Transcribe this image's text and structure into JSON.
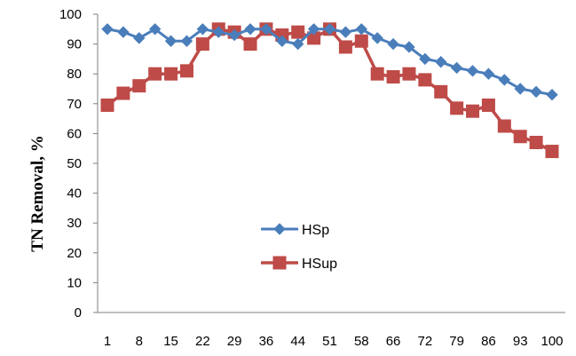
{
  "chart_data": {
    "type": "line",
    "title": "",
    "xlabel": "",
    "ylabel": "TN  Removal, %",
    "ylim": [
      0,
      100
    ],
    "yticks": [
      0,
      10,
      20,
      30,
      40,
      50,
      60,
      70,
      80,
      90,
      100
    ],
    "x_tick_labels": [
      "1",
      "8",
      "15",
      "22",
      "29",
      "36",
      "44",
      "51",
      "58",
      "66",
      "72",
      "79",
      "86",
      "93",
      "100"
    ],
    "grid": false,
    "legend_position": "center-left",
    "series": [
      {
        "name": "HSp",
        "color": "#4a7ebb",
        "marker": "diamond",
        "values": [
          95,
          94,
          92,
          95,
          91,
          91,
          95,
          94,
          93,
          95,
          95,
          91,
          90,
          95,
          95,
          94,
          95,
          92,
          90,
          89,
          85,
          84,
          82,
          81,
          80,
          78,
          75,
          74,
          73
        ]
      },
      {
        "name": "HSup",
        "color": "#be4b48",
        "marker": "square",
        "values": [
          69.5,
          73.5,
          76,
          80,
          80,
          81,
          90,
          95,
          94,
          90,
          95,
          93,
          94,
          92,
          95,
          89,
          91,
          80,
          79,
          80,
          78,
          74,
          68.5,
          67.5,
          69.5,
          62.5,
          59,
          57,
          54
        ]
      }
    ]
  }
}
